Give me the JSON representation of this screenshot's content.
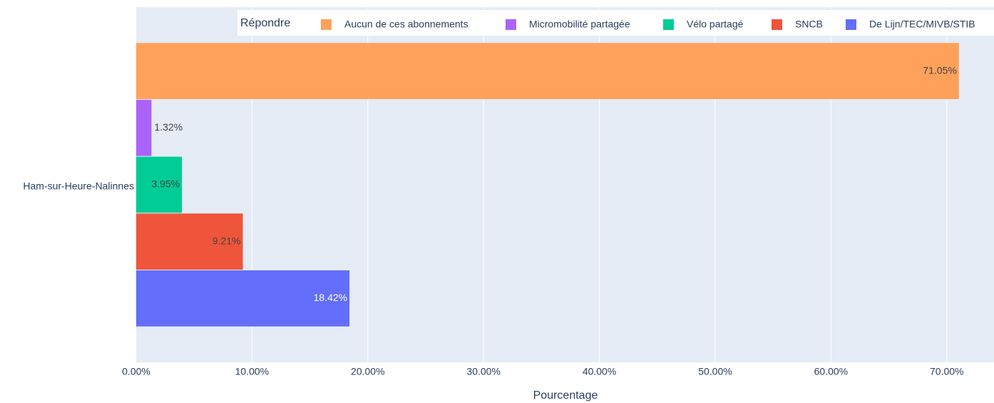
{
  "chart_data": {
    "type": "bar",
    "orientation": "horizontal",
    "categories": [
      "Ham-sur-Heure-Nalinnes"
    ],
    "legend_title": "Répondre",
    "xlabel": "Pourcentage",
    "series": [
      {
        "name": "Aucun de ces abonnements",
        "color": "#FFA15A",
        "values": [
          71.05
        ],
        "value_labels": [
          "71.05%"
        ]
      },
      {
        "name": "Micromobilité partagée",
        "color": "#AB63FA",
        "values": [
          1.32
        ],
        "value_labels": [
          "1.32%"
        ]
      },
      {
        "name": "Vélo partagé",
        "color": "#00CC96",
        "values": [
          3.95
        ],
        "value_labels": [
          "3.95%"
        ]
      },
      {
        "name": "SNCB",
        "color": "#EF553B",
        "values": [
          9.21
        ],
        "value_labels": [
          "9.21%"
        ]
      },
      {
        "name": "De Lijn/TEC/MIVB/STIB",
        "color": "#636EFA",
        "values": [
          18.42
        ],
        "value_labels": [
          "18.42%"
        ]
      }
    ],
    "xlim": [
      0,
      74.08
    ],
    "xticks": [
      {
        "value": 0,
        "label": "0.00%"
      },
      {
        "value": 10,
        "label": "10.00%"
      },
      {
        "value": 20,
        "label": "20.00%"
      },
      {
        "value": 30,
        "label": "30.00%"
      },
      {
        "value": 40,
        "label": "40.00%"
      },
      {
        "value": 50,
        "label": "50.00%"
      },
      {
        "value": 60,
        "label": "60.00%"
      },
      {
        "value": 70,
        "label": "70.00%"
      }
    ],
    "grid": true,
    "legend_position": "top-right"
  }
}
